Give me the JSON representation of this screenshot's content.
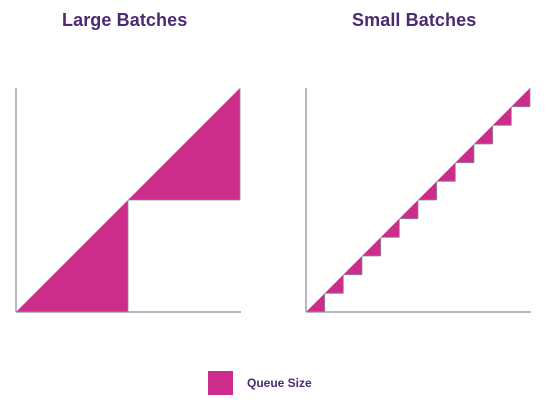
{
  "panels": {
    "large": {
      "title": "Large Batches",
      "batches": 2
    },
    "small": {
      "title": "Small Batches",
      "batches": 12
    }
  },
  "legend": {
    "label": "Queue Size"
  },
  "colors": {
    "fill": "#cc2d8a",
    "axis": "#8a8a9e",
    "title": "#4b2a73"
  }
}
